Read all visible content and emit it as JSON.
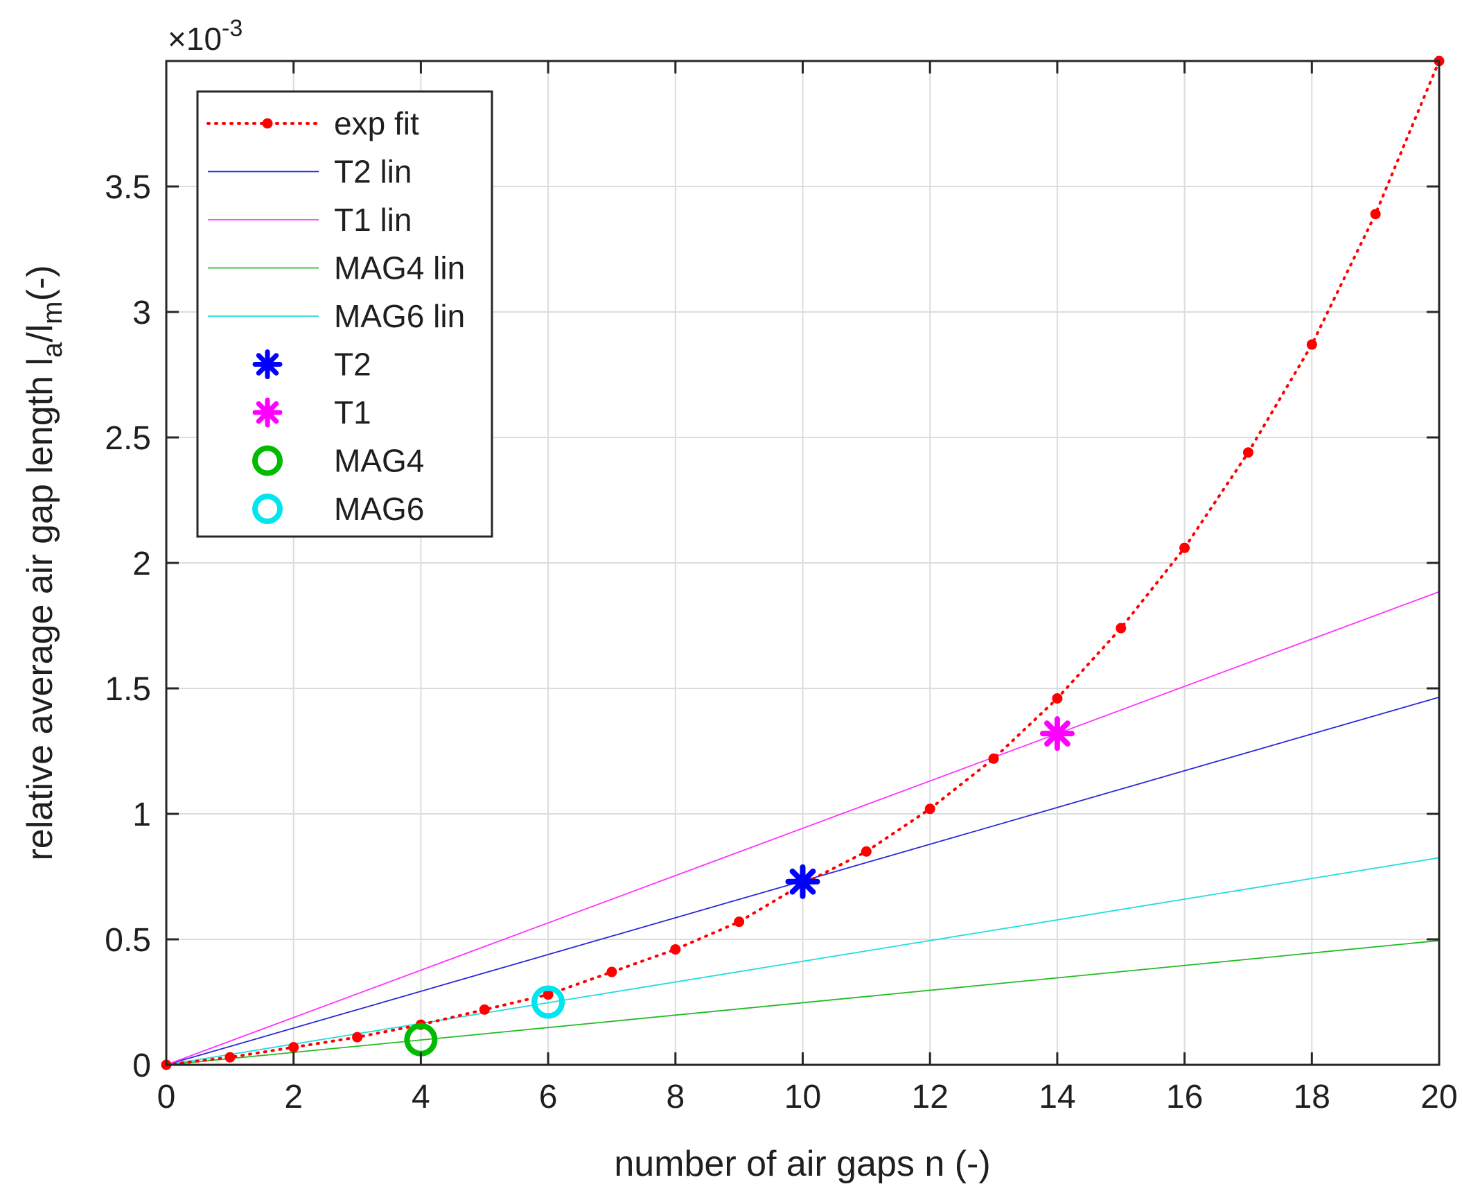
{
  "chart_data": {
    "type": "line",
    "title": "",
    "xlabel": "number of air gaps n (-)",
    "ylabel_parts": [
      "relative average air gap length l",
      "a",
      "/l",
      "m",
      "(-)"
    ],
    "exponent_label": {
      "prefix": "×10",
      "power": "-3"
    },
    "xlim": [
      0,
      20
    ],
    "ylim": [
      0,
      4.0
    ],
    "y_scale": "×10^-3",
    "grid": true,
    "legend_position": "top-left",
    "x_ticks": [
      0,
      2,
      4,
      6,
      8,
      10,
      12,
      14,
      16,
      18,
      20
    ],
    "x_tick_labels": [
      "0",
      "2",
      "4",
      "6",
      "8",
      "10",
      "12",
      "14",
      "16",
      "18",
      "20"
    ],
    "y_ticks": [
      0,
      0.5,
      1,
      1.5,
      2,
      2.5,
      3,
      3.5
    ],
    "y_tick_labels": [
      "0",
      "0.5",
      "1",
      "1.5",
      "2",
      "2.5",
      "3",
      "3.5"
    ],
    "series": [
      {
        "name": "exp fit",
        "kind": "line-dots",
        "color": "#ff0000",
        "dash": "dotted",
        "x": [
          0,
          1,
          2,
          3,
          4,
          5,
          6,
          7,
          8,
          9,
          10,
          11,
          12,
          13,
          14,
          15,
          16,
          17,
          18,
          19,
          20
        ],
        "y": [
          0,
          0.03,
          0.07,
          0.11,
          0.16,
          0.22,
          0.28,
          0.37,
          0.46,
          0.57,
          0.72,
          0.85,
          1.02,
          1.22,
          1.46,
          1.74,
          2.06,
          2.44,
          2.87,
          3.39,
          4.0
        ]
      },
      {
        "name": "T2 lin",
        "kind": "line",
        "color": "#2a2ad8",
        "x": [
          0,
          20
        ],
        "y": [
          0,
          1.465
        ]
      },
      {
        "name": "T1 lin",
        "kind": "line",
        "color": "#ff33ff",
        "x": [
          0,
          20
        ],
        "y": [
          0,
          1.885
        ]
      },
      {
        "name": "MAG4 lin",
        "kind": "line",
        "color": "#22bb22",
        "x": [
          0,
          20
        ],
        "y": [
          0,
          0.495
        ]
      },
      {
        "name": "MAG6 lin",
        "kind": "line",
        "color": "#22dddd",
        "x": [
          0,
          20
        ],
        "y": [
          0,
          0.825
        ]
      },
      {
        "name": "T2",
        "kind": "asterisk",
        "color": "#0000ff",
        "x": [
          10
        ],
        "y": [
          0.73
        ]
      },
      {
        "name": "T1",
        "kind": "asterisk",
        "color": "#ff00ff",
        "x": [
          14
        ],
        "y": [
          1.32
        ]
      },
      {
        "name": "MAG4",
        "kind": "circle",
        "color": "#00bb00",
        "x": [
          4
        ],
        "y": [
          0.1
        ]
      },
      {
        "name": "MAG6",
        "kind": "circle",
        "color": "#00e5ee",
        "x": [
          6
        ],
        "y": [
          0.25
        ]
      }
    ]
  }
}
